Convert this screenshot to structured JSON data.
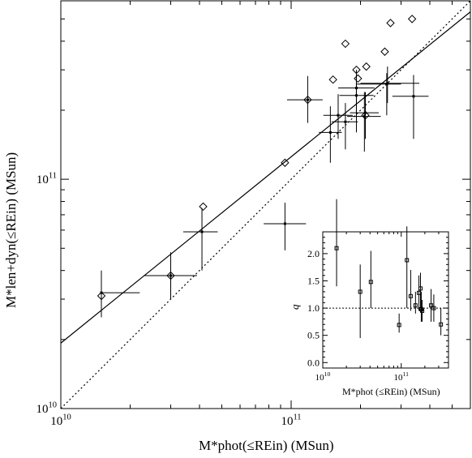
{
  "chart_data": [
    {
      "type": "scatter",
      "title": "",
      "xlabel": "M*phot(≤REin) (MSun)",
      "ylabel": "M*len+dyn(≤REin) (MSun)",
      "xscale": "log",
      "yscale": "log",
      "xlim": [
        10000000000.0,
        600000000000.0
      ],
      "ylim": [
        10000000000.0,
        600000000000.0
      ],
      "x_ticklabels": [
        "10",
        "11"
      ],
      "y_ticklabels": [
        "10",
        "11"
      ],
      "tick_base": "10",
      "grid": false,
      "legend": "none",
      "series": [
        {
          "marker": "dot-with-errorbars",
          "points": [
            {
              "x": 15000000000.0,
              "y": 32000000000.0,
              "xerr": [
                15000000000.0,
                22000000000.0
              ],
              "yerr": [
                25000000000.0,
                40000000000.0
              ]
            },
            {
              "x": 30000000000.0,
              "y": 38000000000.0,
              "xerr": [
                23000000000.0,
                39000000000.0
              ],
              "yerr": [
                30000000000.0,
                48000000000.0
              ]
            },
            {
              "x": 41000000000.0,
              "y": 59000000000.0,
              "xerr": [
                34000000000.0,
                48000000000.0
              ],
              "yerr": [
                40000000000.0,
                75000000000.0
              ]
            },
            {
              "x": 94000000000.0,
              "y": 64000000000.0,
              "xerr": [
                76000000000.0,
                116000000000.0
              ],
              "yerr": [
                49000000000.0,
                79000000000.0
              ]
            },
            {
              "x": 118000000000.0,
              "y": 222000000000.0,
              "xerr": [
                96000000000.0,
                137000000000.0
              ],
              "yerr": [
                176000000000.0,
                282000000000.0
              ]
            },
            {
              "x": 148000000000.0,
              "y": 160000000000.0,
              "xerr": [
                132000000000.0,
                166000000000.0
              ],
              "yerr": [
                118000000000.0,
                208000000000.0
              ]
            },
            {
              "x": 160000000000.0,
              "y": 190000000000.0,
              "xerr": [
                138000000000.0,
                185000000000.0
              ],
              "yerr": [
                150000000000.0,
                235000000000.0
              ]
            },
            {
              "x": 172000000000.0,
              "y": 178000000000.0,
              "xerr": [
                150000000000.0,
                195000000000.0
              ],
              "yerr": [
                135000000000.0,
                215000000000.0
              ]
            },
            {
              "x": 192000000000.0,
              "y": 232000000000.0,
              "xerr": [
                162000000000.0,
                228000000000.0
              ],
              "yerr": [
                160000000000.0,
                300000000000.0
              ]
            },
            {
              "x": 192000000000.0,
              "y": 250000000000.0,
              "xerr": [
                160000000000.0,
                230000000000.0
              ],
              "yerr": [
                185000000000.0,
                285000000000.0
              ]
            },
            {
              "x": 208000000000.0,
              "y": 188000000000.0,
              "xerr": [
                175000000000.0,
                245000000000.0
              ],
              "yerr": [
                132000000000.0,
                240000000000.0
              ]
            },
            {
              "x": 210000000000.0,
              "y": 195000000000.0,
              "xerr": [
                180000000000.0,
                240000000000.0
              ],
              "yerr": [
                150000000000.0,
                240000000000.0
              ]
            },
            {
              "x": 260000000000.0,
              "y": 260000000000.0,
              "xerr": [
                192000000000.0,
                300000000000.0
              ],
              "yerr": [
                190000000000.0,
                290000000000.0
              ]
            },
            {
              "x": 262000000000.0,
              "y": 262000000000.0,
              "xerr": [
                200000000000.0,
                360000000000.0
              ],
              "yerr": [
                215000000000.0,
                310000000000.0
              ]
            },
            {
              "x": 340000000000.0,
              "y": 230000000000.0,
              "xerr": [
                275000000000.0,
                395000000000.0
              ],
              "yerr": [
                150000000000.0,
                285000000000.0
              ]
            }
          ]
        },
        {
          "marker": "open-diamond",
          "points": [
            {
              "x": 15000000000.0,
              "y": 31000000000.0
            },
            {
              "x": 30000000000.0,
              "y": 38000000000.0
            },
            {
              "x": 41500000000.0,
              "y": 76000000000.0
            },
            {
              "x": 94000000000.0,
              "y": 118000000000.0
            },
            {
              "x": 118000000000.0,
              "y": 222000000000.0
            },
            {
              "x": 152000000000.0,
              "y": 272000000000.0
            },
            {
              "x": 172000000000.0,
              "y": 390000000000.0
            },
            {
              "x": 192000000000.0,
              "y": 300000000000.0
            },
            {
              "x": 195000000000.0,
              "y": 275000000000.0
            },
            {
              "x": 210000000000.0,
              "y": 190000000000.0
            },
            {
              "x": 212000000000.0,
              "y": 310000000000.0
            },
            {
              "x": 255000000000.0,
              "y": 360000000000.0
            },
            {
              "x": 270000000000.0,
              "y": 480000000000.0
            },
            {
              "x": 335000000000.0,
              "y": 500000000000.0
            }
          ]
        }
      ],
      "lines": [
        {
          "style": "solid",
          "kind": "best-fit",
          "points": [
            [
              10000000000.0,
              19300000000.0
            ],
            [
              600000000000.0,
              537000000000.0
            ]
          ]
        },
        {
          "style": "dotted",
          "kind": "one-to-one",
          "points": [
            [
              10000000000.0,
              10000000000.0
            ],
            [
              600000000000.0,
              600000000000.0
            ]
          ]
        }
      ]
    },
    {
      "type": "scatter",
      "title": "",
      "xlabel": "M*phot (≤REin) (MSun)",
      "ylabel": "q",
      "xscale": "log",
      "xlim": [
        10000000000.0,
        400000000000.0
      ],
      "ylim": [
        -0.1,
        2.4
      ],
      "x_ticklabels": [
        "10",
        "11"
      ],
      "y_ticklabels": [
        "0.0",
        "0.5",
        "1.0",
        "1.5",
        "2.0"
      ],
      "tick_base": "10",
      "grid": false,
      "legend": "none",
      "reference_line": {
        "y": 1.0,
        "style": "dotted"
      },
      "points": [
        {
          "x": 15000000000.0,
          "y": 2.1,
          "yerr": [
            1.4,
            3.0
          ]
        },
        {
          "x": 30000000000.0,
          "y": 1.3,
          "yerr": [
            0.45,
            1.8
          ]
        },
        {
          "x": 41000000000.0,
          "y": 1.48,
          "yerr": [
            1.0,
            2.05
          ]
        },
        {
          "x": 94000000000.0,
          "y": 0.69,
          "yerr": [
            0.55,
            0.9
          ]
        },
        {
          "x": 118000000000.0,
          "y": 1.88,
          "yerr": [
            1.0,
            2.5
          ]
        },
        {
          "x": 132000000000.0,
          "y": 1.22,
          "yerr": [
            0.95,
            1.7
          ]
        },
        {
          "x": 152000000000.0,
          "y": 1.05,
          "yerr": [
            0.9,
            1.3
          ]
        },
        {
          "x": 168000000000.0,
          "y": 1.28,
          "yerr": [
            0.95,
            1.6
          ]
        },
        {
          "x": 176000000000.0,
          "y": 1.36,
          "yerr": [
            1.0,
            1.65
          ]
        },
        {
          "x": 180000000000.0,
          "y": 0.98,
          "yerr": [
            0.75,
            1.3
          ]
        },
        {
          "x": 185000000000.0,
          "y": 0.95,
          "yerr": [
            0.75,
            1.15
          ]
        },
        {
          "x": 240000000000.0,
          "y": 1.05,
          "yerr": [
            0.75,
            1.35
          ]
        },
        {
          "x": 260000000000.0,
          "y": 1.0,
          "yerr": [
            0.75,
            1.25
          ]
        },
        {
          "x": 320000000000.0,
          "y": 0.7,
          "yerr": [
            0.5,
            1.0
          ]
        }
      ]
    }
  ]
}
